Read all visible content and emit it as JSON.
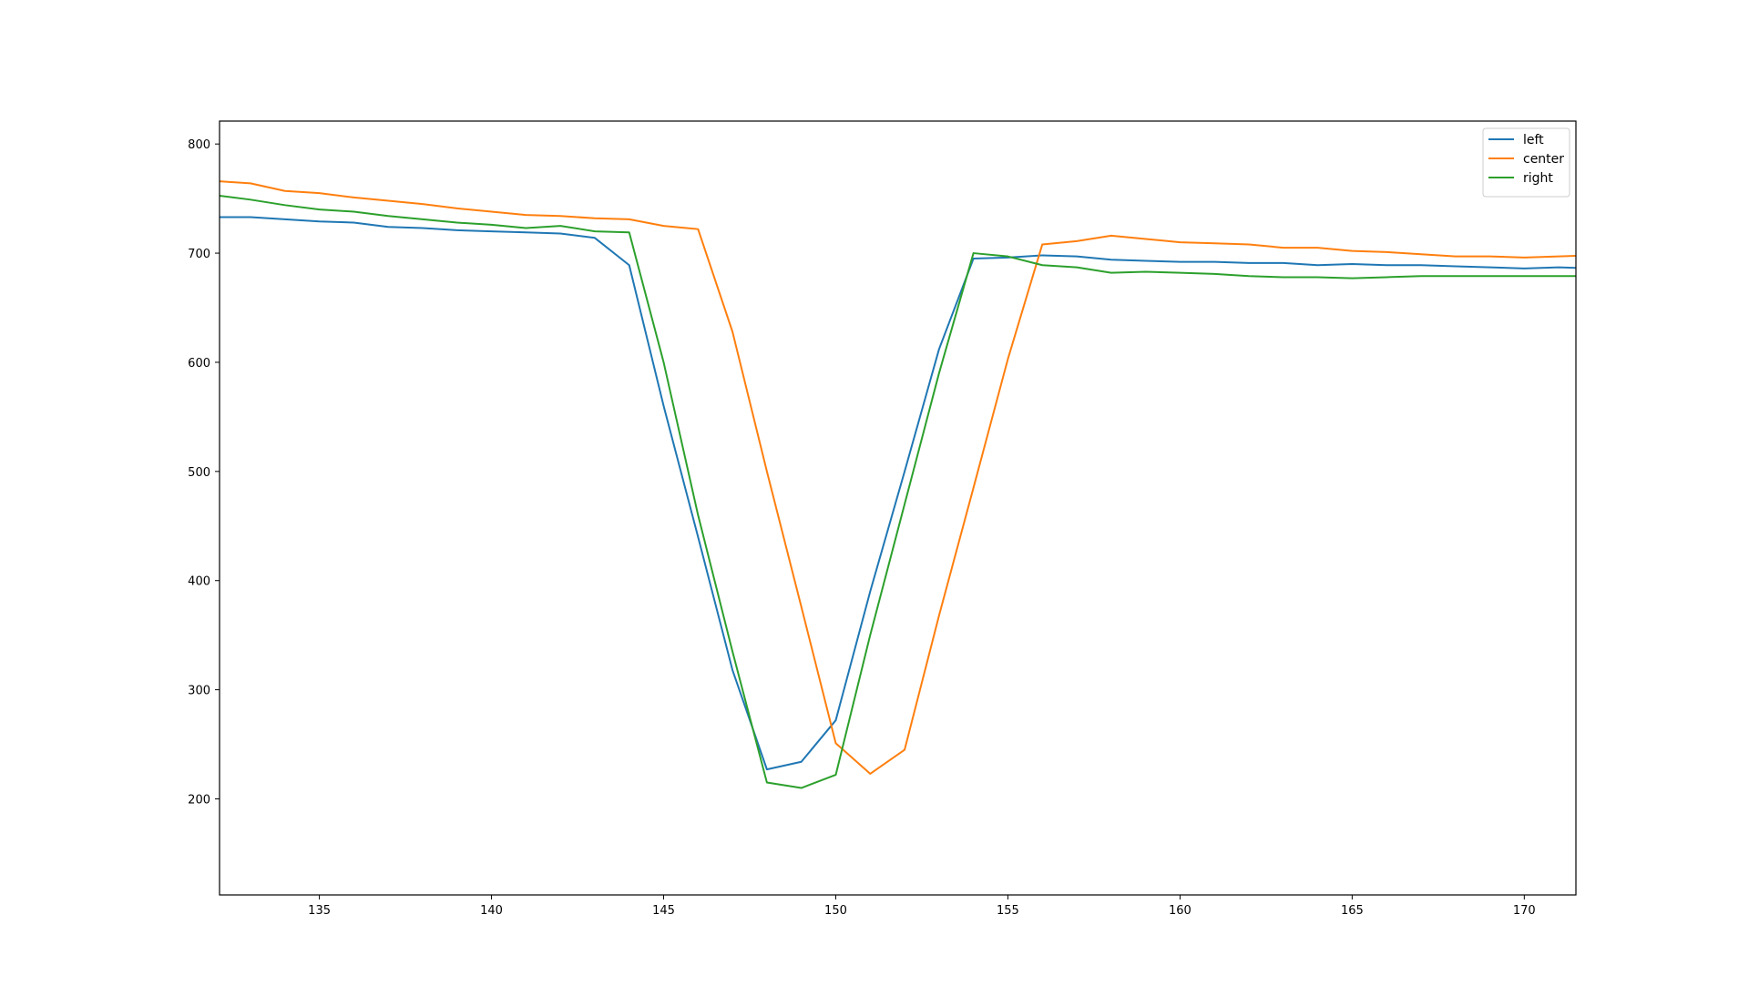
{
  "chart_data": {
    "type": "line",
    "title": "",
    "xlabel": "",
    "ylabel": "",
    "xlim": [
      132.1,
      171.5
    ],
    "ylim": [
      112,
      821
    ],
    "xticks": [
      135,
      140,
      145,
      150,
      155,
      160,
      165,
      170
    ],
    "yticks": [
      200,
      300,
      400,
      500,
      600,
      700,
      800
    ],
    "grid": false,
    "legend_position": "top-right",
    "x": [
      132,
      133,
      134,
      135,
      136,
      137,
      138,
      139,
      140,
      141,
      142,
      143,
      144,
      145,
      146,
      147,
      148,
      149,
      150,
      151,
      152,
      153,
      154,
      155,
      156,
      157,
      158,
      159,
      160,
      161,
      162,
      163,
      164,
      165,
      166,
      167,
      168,
      169,
      170,
      171,
      172
    ],
    "series": [
      {
        "name": "left",
        "color": "#1f77b4",
        "values": [
          733,
          733,
          731,
          729,
          728,
          724,
          723,
          721,
          720,
          719,
          718,
          714,
          689,
          560,
          440,
          318,
          227,
          234,
          272,
          390,
          500,
          612,
          695,
          696,
          698,
          697,
          694,
          693,
          692,
          692,
          691,
          691,
          689,
          690,
          689,
          689,
          688,
          687,
          686,
          687,
          686
        ]
      },
      {
        "name": "center",
        "color": "#ff7f0e",
        "values": [
          766,
          764,
          757,
          755,
          751,
          748,
          745,
          741,
          738,
          735,
          734,
          732,
          731,
          725,
          722,
          628,
          500,
          376,
          251,
          223,
          245,
          368,
          485,
          603,
          708,
          711,
          716,
          713,
          710,
          709,
          708,
          705,
          705,
          702,
          701,
          699,
          697,
          697,
          696,
          697,
          698
        ]
      },
      {
        "name": "right",
        "color": "#2ca02c",
        "values": [
          753,
          749,
          744,
          740,
          738,
          734,
          731,
          728,
          726,
          723,
          725,
          720,
          719,
          600,
          460,
          335,
          215,
          210,
          222,
          350,
          470,
          590,
          700,
          697,
          689,
          687,
          682,
          683,
          682,
          681,
          679,
          678,
          678,
          677,
          678,
          679,
          679,
          679,
          679,
          679,
          679
        ]
      }
    ]
  }
}
